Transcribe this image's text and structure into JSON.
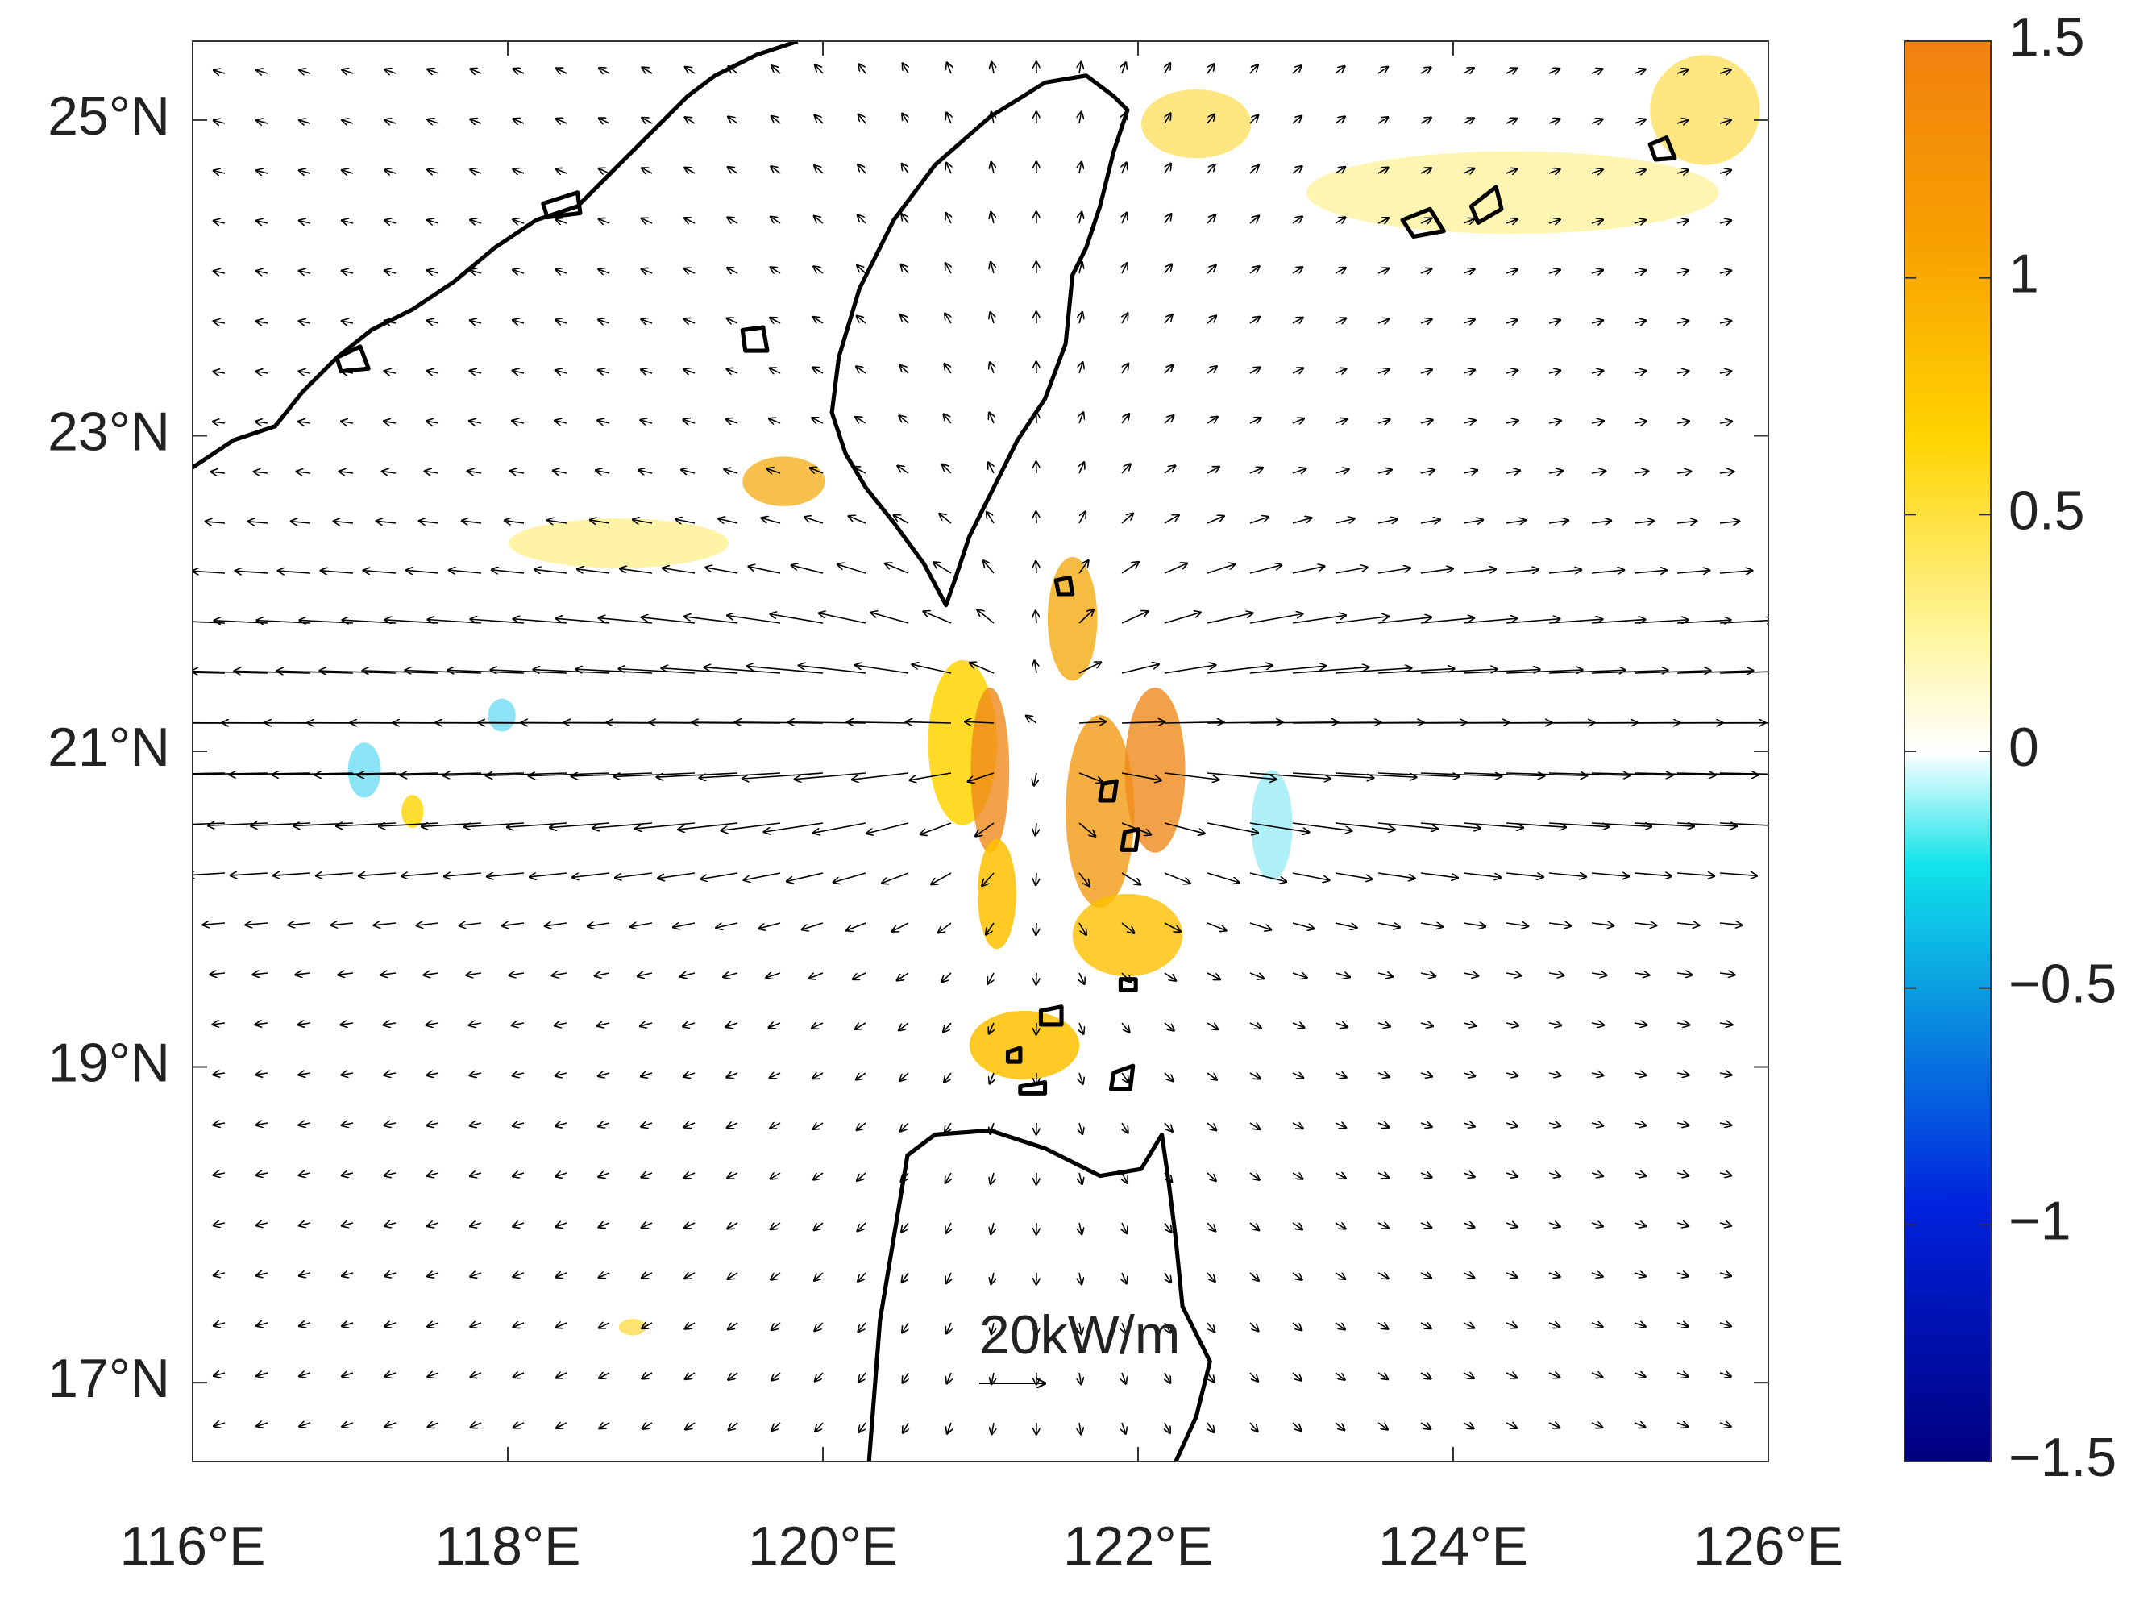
{
  "chart_data": {
    "type": "map",
    "xlim": [
      116,
      126
    ],
    "ylim": [
      16.5,
      25.5
    ],
    "xticks": [
      {
        "value": 116,
        "label": "116°E"
      },
      {
        "value": 118,
        "label": "118°E"
      },
      {
        "value": 120,
        "label": "120°E"
      },
      {
        "value": 122,
        "label": "122°E"
      },
      {
        "value": 124,
        "label": "124°E"
      },
      {
        "value": 126,
        "label": "126°E"
      }
    ],
    "yticks": [
      {
        "value": 17,
        "label": "17°N"
      },
      {
        "value": 19,
        "label": "19°N"
      },
      {
        "value": 21,
        "label": "21°N"
      },
      {
        "value": 23,
        "label": "23°N"
      },
      {
        "value": 25,
        "label": "25°N"
      }
    ],
    "colorbar": {
      "lim": [
        -1.5,
        1.5
      ],
      "ticks": [
        {
          "value": -1.5,
          "label": "−1.5"
        },
        {
          "value": -1,
          "label": "−1"
        },
        {
          "value": -0.5,
          "label": "−0.5"
        },
        0,
        0.5,
        1,
        1.5
      ]
    },
    "annotation": "20kW/m"
  }
}
